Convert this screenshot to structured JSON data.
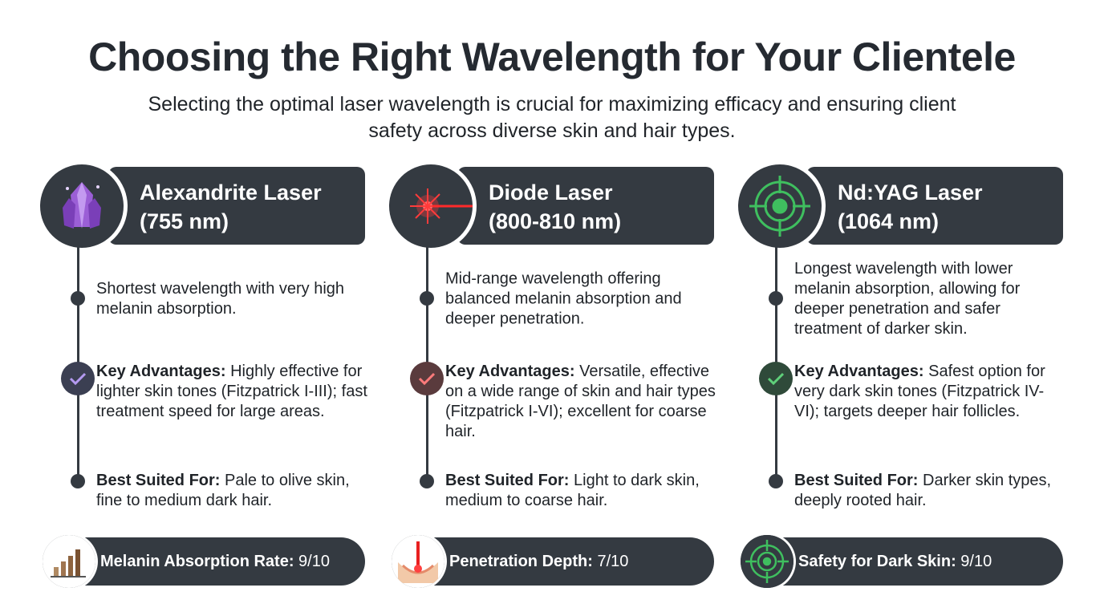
{
  "header": {
    "title": "Choosing the Right Wavelength for Your Clientele",
    "subtitle": "Selecting the optimal laser wavelength is crucial for maximizing efficacy and ensuring client safety across diverse skin and hair types."
  },
  "columns": [
    {
      "name": "Alexandrite Laser",
      "wavelength": "(755 nm)",
      "description": "Shortest wavelength with very high melanin absorption.",
      "advantages_label": "Key Advantages:",
      "advantages": "Highly effective for lighter skin tones (Fitzpatrick I-III); fast treatment speed for large areas.",
      "suited_label": "Best Suited For:",
      "suited": "Pale to olive skin, fine to medium dark hair.",
      "metric_label": "Melanin Absorption Rate:",
      "metric_value": "9/10"
    },
    {
      "name": "Diode Laser",
      "wavelength": "(800-810 nm)",
      "description": "Mid-range wavelength offering balanced melanin absorption and deeper penetration.",
      "advantages_label": "Key Advantages:",
      "advantages": "Versatile, effective on a wide range of skin and hair types (Fitzpatrick I-VI); excellent for coarse hair.",
      "suited_label": "Best Suited For:",
      "suited": "Light to dark skin, medium to coarse hair.",
      "metric_label": "Penetration Depth:",
      "metric_value": "7/10"
    },
    {
      "name": "Nd:YAG Laser",
      "wavelength": "(1064 nm)",
      "description": "Longest wavelength with lower melanin absorption, allowing for deeper penetration and safer treatment of darker skin.",
      "advantages_label": "Key Advantages:",
      "advantages": "Safest option for very dark skin tones (Fitzpatrick IV-VI); targets deeper hair follicles.",
      "suited_label": "Best Suited For:",
      "suited": "Darker skin types, deeply rooted hair.",
      "metric_label": "Safety for Dark Skin:",
      "metric_value": "9/10"
    }
  ]
}
